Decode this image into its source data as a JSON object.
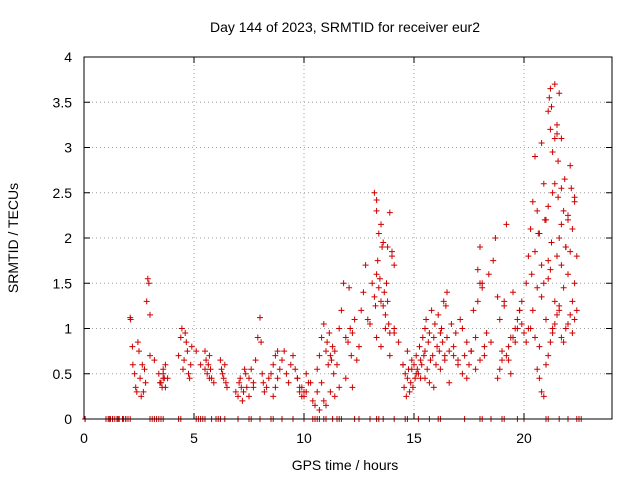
{
  "chart_data": {
    "type": "scatter",
    "title": "Day 144 of 2023, SRMTID for receiver eur2",
    "xlabel": "GPS time / hours",
    "ylabel": "SRMTID / TECUs",
    "xlim": [
      0,
      24
    ],
    "ylim": [
      0,
      4
    ],
    "xticks": [
      0,
      5,
      10,
      15,
      20
    ],
    "yticks": [
      0,
      0.5,
      1,
      1.5,
      2,
      2.5,
      3,
      3.5,
      4
    ],
    "ytick_labels": [
      "0",
      "0.5",
      "1",
      "1.5",
      "2",
      "2.5",
      "3",
      "3.5",
      "4"
    ],
    "grid": true,
    "marker": "+",
    "series": [
      {
        "name": "SRMTID",
        "color": "#cc0000",
        "x": [
          0.05,
          1.0,
          1.15,
          1.3,
          1.55,
          1.75,
          1.9,
          2.0,
          2.1,
          2.1,
          2.12,
          2.2,
          2.22,
          2.3,
          2.35,
          2.4,
          2.45,
          2.5,
          2.55,
          2.6,
          2.65,
          2.7,
          2.75,
          2.8,
          2.85,
          2.9,
          2.95,
          3.0,
          3.0,
          3.2,
          3.4,
          3.45,
          3.6,
          3.6,
          3.7,
          3.8,
          3.5,
          3.55,
          3.6,
          3.65,
          3.7,
          4.3,
          4.4,
          4.45,
          4.5,
          4.55,
          4.6,
          4.65,
          4.7,
          4.75,
          4.8,
          4.85,
          4.9,
          5.1,
          5.3,
          5.5,
          5.7,
          5.8,
          5.9,
          5.5,
          5.55,
          5.6,
          5.65,
          5.7,
          5.75,
          6.2,
          6.25,
          6.3,
          6.35,
          6.4,
          6.45,
          6.5,
          6.9,
          7.0,
          7.05,
          7.1,
          7.15,
          7.2,
          7.25,
          7.3,
          7.35,
          7.4,
          7.5,
          7.7,
          7.5,
          7.6,
          7.7,
          7.8,
          7.9,
          8.0,
          8.05,
          8.1,
          8.15,
          8.2,
          8.3,
          8.4,
          8.5,
          8.6,
          8.7,
          8.8,
          8.6,
          8.7,
          8.8,
          8.9,
          9.0,
          9.1,
          9.2,
          9.3,
          9.4,
          9.5,
          9.6,
          9.7,
          9.8,
          9.9,
          10.0,
          10.1,
          10.2,
          9.7,
          9.8,
          9.9,
          10.0,
          10.1,
          10.3,
          10.4,
          10.5,
          10.6,
          10.7,
          10.8,
          10.9,
          11.0,
          11.2,
          11.4,
          11.6,
          11.9,
          12.2,
          10.6,
          10.7,
          10.8,
          10.9,
          11.0,
          11.05,
          11.1,
          11.15,
          11.2,
          11.25,
          11.3,
          11.35,
          11.4,
          11.5,
          11.6,
          11.7,
          11.8,
          11.9,
          12.0,
          12.05,
          12.1,
          12.15,
          12.2,
          12.3,
          12.4,
          12.5,
          12.6,
          12.7,
          12.8,
          12.9,
          13.0,
          13.1,
          13.2,
          13.25,
          13.3,
          13.35,
          13.4,
          13.45,
          13.5,
          13.55,
          13.6,
          13.65,
          13.7,
          13.75,
          13.8,
          13.85,
          13.9,
          14.0,
          14.1,
          13.2,
          13.3,
          13.3,
          13.4,
          13.5,
          13.6,
          13.8,
          13.9,
          14.0,
          14.1,
          13.3,
          13.5,
          13.7,
          13.9,
          14.1,
          14.3,
          14.5,
          14.7,
          14.9,
          15.1,
          15.3,
          15.5,
          15.7,
          15.9,
          14.5,
          14.55,
          14.6,
          14.65,
          14.7,
          14.75,
          14.8,
          14.85,
          14.9,
          14.95,
          15.0,
          15.05,
          15.1,
          15.15,
          15.2,
          15.25,
          15.3,
          15.35,
          15.4,
          15.45,
          15.5,
          15.5,
          15.55,
          15.6,
          15.65,
          15.7,
          15.75,
          15.8,
          15.85,
          15.9,
          15.95,
          16.0,
          16.05,
          16.1,
          16.15,
          16.2,
          16.25,
          16.3,
          16.35,
          16.4,
          16.45,
          16.5,
          16.5,
          16.6,
          16.7,
          16.8,
          16.9,
          17.0,
          17.1,
          17.2,
          17.3,
          17.4,
          17.5,
          17.6,
          17.7,
          17.8,
          17.9,
          18.0,
          18.1,
          18.2,
          16.2,
          16.4,
          16.6,
          16.8,
          17.0,
          17.2,
          17.4,
          17.6,
          17.8,
          18.0,
          17.9,
          18.0,
          18.1,
          18.2,
          18.3,
          18.4,
          18.5,
          18.6,
          18.7,
          18.8,
          18.9,
          19.0,
          19.1,
          19.2,
          19.3,
          19.4,
          19.5,
          19.6,
          19.7,
          19.8,
          19.9,
          18.8,
          18.9,
          19.0,
          19.1,
          19.2,
          19.3,
          19.4,
          19.5,
          19.6,
          19.7,
          19.8,
          19.9,
          20.0,
          20.1,
          20.2,
          20.1,
          20.2,
          20.3,
          20.4,
          20.5,
          20.6,
          20.7,
          20.8,
          20.9,
          21.0,
          21.1,
          21.2,
          21.3,
          21.4,
          21.5,
          21.6,
          21.7,
          21.8,
          21.9,
          22.0,
          22.1,
          22.2,
          22.3,
          22.4,
          20.3,
          20.4,
          20.5,
          20.6,
          20.7,
          20.8,
          20.9,
          21.0,
          21.1,
          21.2,
          21.3,
          21.4,
          21.5,
          21.6,
          21.7,
          21.8,
          21.9,
          22.0,
          22.1,
          22.2,
          22.3,
          22.4,
          20.35,
          20.5,
          20.65,
          20.8,
          20.95,
          21.1,
          21.25,
          21.4,
          21.55,
          21.7,
          21.85,
          22.0,
          22.15,
          22.3,
          20.6,
          20.7,
          20.8,
          20.9,
          21.0,
          21.1,
          21.2,
          21.3,
          21.4,
          21.5,
          21.6,
          21.7,
          21.8,
          21.9,
          22.0,
          22.1,
          22.2,
          22.3,
          21.1,
          21.15,
          21.2,
          21.25,
          21.3,
          21.4,
          21.5,
          21.55,
          21.6,
          21.7,
          0.05,
          1.0,
          1.1,
          1.2,
          1.3,
          1.4,
          1.5,
          1.6,
          1.8,
          1.9,
          2.0,
          3.0,
          3.1,
          3.2,
          3.3,
          3.4,
          3.5,
          3.6,
          4.3,
          4.4,
          5.1,
          5.2,
          5.3,
          5.4,
          5.5,
          5.8,
          6.0,
          6.1,
          6.2,
          6.4,
          7.0,
          7.5,
          7.6,
          8.0,
          8.5,
          8.6,
          9.0,
          9.5,
          10.0,
          10.4,
          10.5,
          10.6,
          10.7,
          10.9,
          11.0,
          11.3,
          11.5,
          11.6,
          11.7,
          12.3,
          12.5,
          13.0,
          13.3,
          13.4,
          13.6,
          14.1,
          14.6,
          14.7,
          15.2,
          15.7,
          16.1,
          16.2,
          17.3,
          18.0,
          18.1,
          18.5,
          19.0,
          19.1,
          19.7,
          20.0,
          21.0,
          21.1,
          21.6,
          22.0,
          22.4,
          22.5,
          22.6
        ],
        "y": [
          0.0,
          0.0,
          0.0,
          0.0,
          0.0,
          0.0,
          0.0,
          0.0,
          0.0,
          1.12,
          1.1,
          0.8,
          0.6,
          0.5,
          0.35,
          0.3,
          0.85,
          0.75,
          0.45,
          0.25,
          0.6,
          0.3,
          0.55,
          0.4,
          1.3,
          1.55,
          1.5,
          1.15,
          0.7,
          0.65,
          0.5,
          0.4,
          0.45,
          0.55,
          0.35,
          0.45,
          0.4,
          0.35,
          0.5,
          0.45,
          0.6,
          0.7,
          0.9,
          1.0,
          0.55,
          0.65,
          0.95,
          0.85,
          0.75,
          0.5,
          0.45,
          0.6,
          0.8,
          0.75,
          0.6,
          0.55,
          0.7,
          0.45,
          0.4,
          0.75,
          0.65,
          0.5,
          0.6,
          0.45,
          0.55,
          0.65,
          0.55,
          0.5,
          0.45,
          0.6,
          0.4,
          0.35,
          0.3,
          0.25,
          0.4,
          0.45,
          0.35,
          0.2,
          0.3,
          0.55,
          0.5,
          0.35,
          0.25,
          0.4,
          0.45,
          0.55,
          0.35,
          0.65,
          0.9,
          1.12,
          0.85,
          0.5,
          0.4,
          0.3,
          0.35,
          0.45,
          0.5,
          0.6,
          0.7,
          0.75,
          0.25,
          0.35,
          0.45,
          0.55,
          0.65,
          0.75,
          0.5,
          0.4,
          0.6,
          0.7,
          0.55,
          0.45,
          0.3,
          0.35,
          0.25,
          0.3,
          0.4,
          0.45,
          0.35,
          0.25,
          0.3,
          0.5,
          0.4,
          0.2,
          0.15,
          0.3,
          0.1,
          0.4,
          0.2,
          0.15,
          0.3,
          0.25,
          0.35,
          0.45,
          0.35,
          0.55,
          0.7,
          0.9,
          1.05,
          0.75,
          0.85,
          0.6,
          0.95,
          0.7,
          0.65,
          0.8,
          0.5,
          0.75,
          0.6,
          1.0,
          1.2,
          1.5,
          0.9,
          0.85,
          1.45,
          1.0,
          0.7,
          0.95,
          1.1,
          0.65,
          0.8,
          1.2,
          1.4,
          1.7,
          1.1,
          1.05,
          1.5,
          1.35,
          1.25,
          1.6,
          1.75,
          1.45,
          1.55,
          1.3,
          1.9,
          1.25,
          1.4,
          1.15,
          1.5,
          1.3,
          1.05,
          0.95,
          1.85,
          1.0,
          2.5,
          2.42,
          2.3,
          2.05,
          2.15,
          1.95,
          1.9,
          2.28,
          1.8,
          1.7,
          0.9,
          0.8,
          1.0,
          0.7,
          0.95,
          0.85,
          0.6,
          0.75,
          0.55,
          0.5,
          0.65,
          0.45,
          0.4,
          0.35,
          0.6,
          0.35,
          0.5,
          0.25,
          0.45,
          0.55,
          0.3,
          0.4,
          0.65,
          0.35,
          0.6,
          0.45,
          0.7,
          0.55,
          0.5,
          0.8,
          0.45,
          0.6,
          0.9,
          0.7,
          1.0,
          0.75,
          1.1,
          0.55,
          0.85,
          0.95,
          0.65,
          1.2,
          0.7,
          0.9,
          1.05,
          0.6,
          0.8,
          1.15,
          0.75,
          0.95,
          1.0,
          0.85,
          1.3,
          0.7,
          1.25,
          1.4,
          0.9,
          0.75,
          1.05,
          0.8,
          0.95,
          0.65,
          1.1,
          1.0,
          0.7,
          0.85,
          0.6,
          0.75,
          1.2,
          0.9,
          1.65,
          1.9,
          1.5,
          0.7,
          0.55,
          0.65,
          0.4,
          0.7,
          0.6,
          0.5,
          0.45,
          0.75,
          0.55,
          0.65,
          1.3,
          1.5,
          1.45,
          0.8,
          0.95,
          1.6,
          0.85,
          1.75,
          2.0,
          1.35,
          1.1,
          0.75,
          1.25,
          2.15,
          0.65,
          0.5,
          0.9,
          0.85,
          1.0,
          1.2,
          1.05,
          0.45,
          0.55,
          0.65,
          1.3,
          0.7,
          0.8,
          0.9,
          1.4,
          1.0,
          1.1,
          1.2,
          1.3,
          0.95,
          0.85,
          1.0,
          1.5,
          1.8,
          2.1,
          2.4,
          2.9,
          2.3,
          2.05,
          3.05,
          2.6,
          2.2,
          1.75,
          3.2,
          2.5,
          3.7,
          3.15,
          2.0,
          2.55,
          2.3,
          1.9,
          2.2,
          2.8,
          2.1,
          2.45,
          1.8,
          1.0,
          1.2,
          0.9,
          1.45,
          0.8,
          1.35,
          1.5,
          1.1,
          1.55,
          1.65,
          1.0,
          1.3,
          1.8,
          1.2,
          1.7,
          1.45,
          1.9,
          1.6,
          1.85,
          1.3,
          1.5,
          1.2,
          1.6,
          1.85,
          2.05,
          1.7,
          2.2,
          2.35,
          1.95,
          2.6,
          2.45,
          2.15,
          2.65,
          2.25,
          2.55,
          2.4,
          0.55,
          0.45,
          0.3,
          0.25,
          0.6,
          0.7,
          0.85,
          0.95,
          1.05,
          1.15,
          1.25,
          0.9,
          0.85,
          1.0,
          1.05,
          1.15,
          0.95,
          1.1,
          3.4,
          3.55,
          3.65,
          3.45,
          2.95,
          3.1,
          3.25,
          2.85,
          3.6,
          3.1,
          0.0,
          0.0,
          0.0,
          0.0,
          0.0,
          0.0,
          0.0,
          0.0,
          0.0,
          0.0,
          0.0,
          0.0,
          0.0,
          0.0,
          0.0,
          0.0,
          0.0,
          0.0,
          0.0,
          0.0,
          0.0,
          0.0,
          0.0,
          0.0,
          0.0,
          0.0,
          0.0,
          0.0,
          0.0,
          0.0,
          0.0,
          0.0,
          0.0,
          0.0,
          0.0,
          0.0,
          0.0,
          0.0,
          0.0,
          0.0,
          0.0,
          0.0,
          0.0,
          0.0,
          0.0,
          0.0,
          0.0,
          0.0,
          0.0,
          0.0,
          0.0,
          0.0,
          0.0,
          0.0,
          0.0,
          0.0,
          0.0,
          0.0,
          0.0,
          0.0,
          0.0,
          0.0,
          0.0,
          0.0,
          0.0,
          0.0,
          0.0,
          0.0,
          0.0,
          0.0,
          0.0,
          0.0,
          0.0,
          0.0,
          0.0,
          0.0,
          0.0
        ]
      }
    ]
  }
}
